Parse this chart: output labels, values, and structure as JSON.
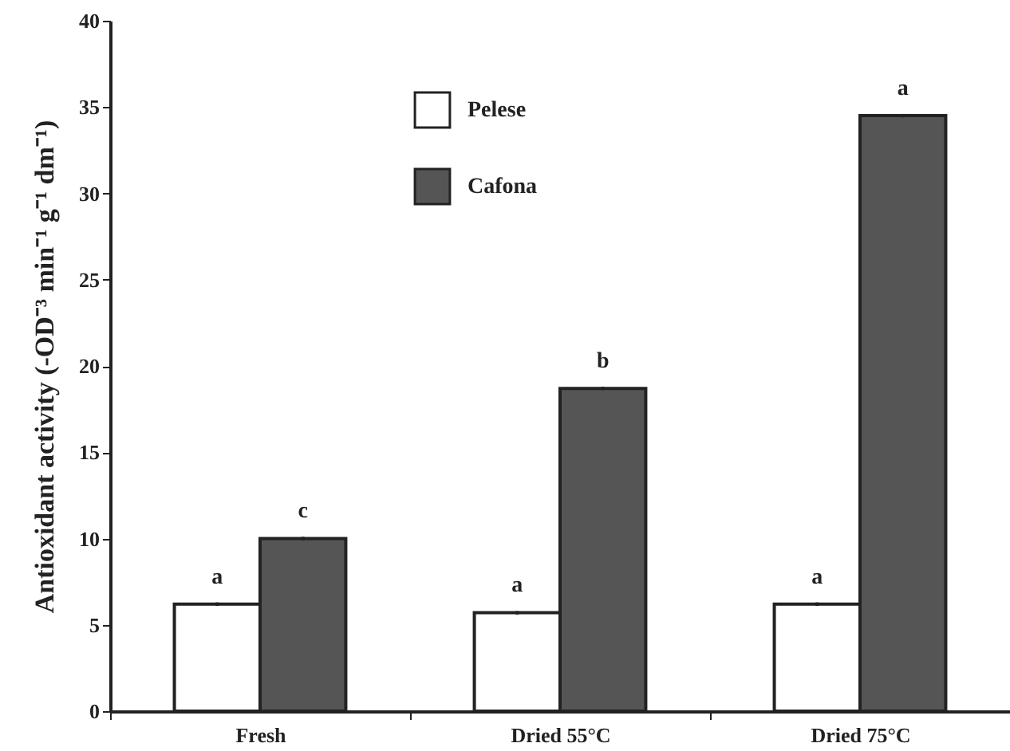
{
  "chart_data": {
    "type": "bar",
    "ylabel": "Antioxidant activity (-OD⁻³ min⁻¹ g⁻¹ dm⁻¹)",
    "categories": [
      "Fresh",
      "Dried 55°C",
      "Dried 75°C"
    ],
    "series": [
      {
        "name": "Pelese",
        "color": "#ffffff",
        "values": [
          6.2,
          5.7,
          6.2
        ],
        "errors": [
          0.1,
          0.1,
          0.1
        ],
        "value_labels": [
          "a",
          "a",
          "a"
        ]
      },
      {
        "name": "Cafona",
        "color": "#555555",
        "values": [
          10.0,
          18.7,
          34.5
        ],
        "errors": [
          0.1,
          0.1,
          0.1
        ],
        "value_labels": [
          "c",
          "b",
          "a"
        ]
      }
    ],
    "ylim": [
      0,
      40
    ],
    "yticks": [
      0,
      5,
      10,
      15,
      20,
      25,
      30,
      35,
      40
    ],
    "grid": false,
    "legend": "top"
  }
}
